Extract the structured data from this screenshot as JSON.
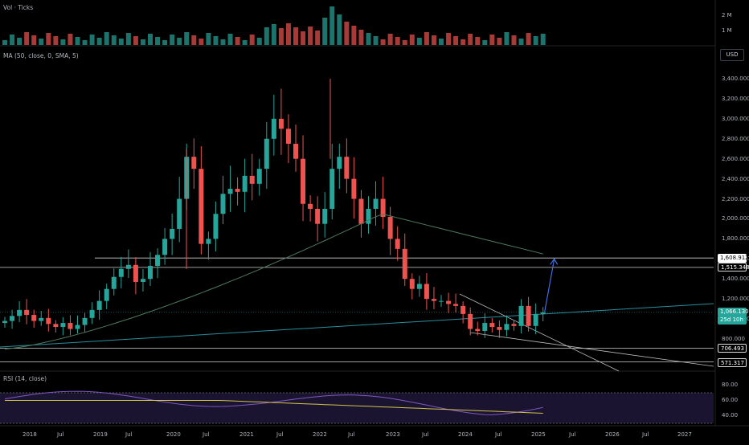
{
  "indicators": {
    "volume": {
      "title": "Vol · Ticks",
      "ticks": [
        "2 M",
        "1 M"
      ]
    },
    "ma": {
      "title": "MA (50, close, 0, SMA, 5)"
    },
    "rsi": {
      "title": "RSI (14, close)",
      "ticks": [
        "80.00",
        "60.00",
        "40.00"
      ]
    }
  },
  "currency_button": "USD",
  "price_tags": {
    "target": "1,608.912",
    "resistance": "1,515.348",
    "current": "1,066.130",
    "countdown": "25d 10h",
    "support1": "706.493",
    "support2": "571.317"
  },
  "colors": {
    "up": "#26a69a",
    "down": "#ef5350",
    "ma": "#4e7a5e",
    "rsi": "#7e57c2",
    "rsi_ma": "#d4c34a",
    "trend": "#2a8fa0",
    "arrow": "#3f6ee8"
  },
  "chart_data": {
    "type": "candlestick",
    "interval": "monthly",
    "price_axis_ticks": [
      "3,400.000",
      "3,200.000",
      "3,000.000",
      "2,800.000",
      "2,600.000",
      "2,400.000",
      "2,200.000",
      "2,000.000",
      "1,800.000",
      "1,600.000",
      "1,400.000",
      "1,200.000",
      "1,000.000",
      "800.000"
    ],
    "x_tick_labels": [
      "2018",
      "Jul",
      "2019",
      "Jul",
      "2020",
      "Jul",
      "2021",
      "Jul",
      "2022",
      "Jul",
      "2023",
      "Jul",
      "2024",
      "Jul",
      "2025",
      "Jul",
      "2026",
      "Jul",
      "2027"
    ],
    "ylim": [
      500,
      3550
    ],
    "horizontal_levels": [
      1608.912,
      1515.348,
      706.493,
      571.317
    ],
    "projection_target": 1608.912,
    "candles_close": [
      980,
      1030,
      1090,
      1040,
      980,
      1010,
      950,
      920,
      960,
      900,
      940,
      1010,
      1090,
      1180,
      1300,
      1420,
      1500,
      1540,
      1370,
      1400,
      1530,
      1640,
      1800,
      1900,
      2200,
      2620,
      2500,
      1750,
      1800,
      2050,
      2250,
      2300,
      2270,
      2430,
      2350,
      2500,
      2800,
      3000,
      2900,
      2750,
      2600,
      2150,
      2100,
      1950,
      2100,
      2500,
      2620,
      2400,
      2200,
      1950,
      2100,
      2200,
      2020,
      1800,
      1700,
      1400,
      1300,
      1350,
      1200,
      1180,
      1180,
      1150,
      1130,
      1050,
      900,
      880,
      960,
      920,
      890,
      950,
      930,
      1130,
      930,
      1050,
      1066.13
    ],
    "volume_approx_millions": "varies 0.2 to 2.7",
    "moving_average": "50-period SMA rising from ~700 (2018) to ~2,050 (mid 2023) then falling to ~1,650 (early 2025)",
    "rsi_range": [
      30,
      75
    ]
  }
}
